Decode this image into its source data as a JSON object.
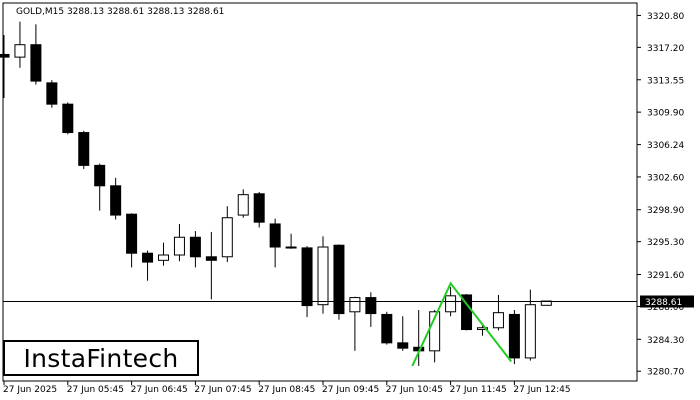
{
  "chart_header": "GOLD,M15  3288.13 3288.61 3288.13 3288.61",
  "logo_text": "InstaFintech",
  "colors": {
    "background": "#ffffff",
    "bull_body": "#ffffff",
    "bear_body": "#000000",
    "wick": "#000000",
    "pattern_line": "#22cc22",
    "price_line": "#000000"
  },
  "chart_data": {
    "type": "candlestick",
    "symbol": "GOLD",
    "timeframe": "M15",
    "ylim": [
      3279.6,
      3322.2
    ],
    "current_price": 3288.61,
    "current_price_label": "3288.61",
    "y_ticks": [
      "3320.80",
      "3317.20",
      "3313.55",
      "3309.90",
      "3306.24",
      "3302.60",
      "3298.90",
      "3295.30",
      "3291.60",
      "3288.00",
      "3284.30",
      "3280.70"
    ],
    "x_ticks": [
      {
        "label": "27 Jun 2025",
        "bar": 0
      },
      {
        "label": "27 Jun 05:45",
        "bar": 4
      },
      {
        "label": "27 Jun 06:45",
        "bar": 8
      },
      {
        "label": "27 Jun 07:45",
        "bar": 12
      },
      {
        "label": "27 Jun 08:45",
        "bar": 16
      },
      {
        "label": "27 Jun 09:45",
        "bar": 20
      },
      {
        "label": "27 Jun 10:45",
        "bar": 24
      },
      {
        "label": "27 Jun 11:45",
        "bar": 28
      },
      {
        "label": "27 Jun 12:45",
        "bar": 32
      }
    ],
    "candles": [
      {
        "o": 3316.4,
        "h": 3318.6,
        "l": 3311.5,
        "c": 3316.1
      },
      {
        "o": 3316.1,
        "h": 3320.1,
        "l": 3314.9,
        "c": 3317.5
      },
      {
        "o": 3317.5,
        "h": 3319.8,
        "l": 3313.0,
        "c": 3313.4
      },
      {
        "o": 3313.2,
        "h": 3313.5,
        "l": 3310.4,
        "c": 3310.8
      },
      {
        "o": 3310.8,
        "h": 3311.0,
        "l": 3307.4,
        "c": 3307.6
      },
      {
        "o": 3307.6,
        "h": 3307.8,
        "l": 3303.5,
        "c": 3303.9
      },
      {
        "o": 3303.9,
        "h": 3304.1,
        "l": 3298.8,
        "c": 3301.6
      },
      {
        "o": 3301.6,
        "h": 3302.5,
        "l": 3297.8,
        "c": 3298.3
      },
      {
        "o": 3298.4,
        "h": 3298.5,
        "l": 3292.4,
        "c": 3294.0
      },
      {
        "o": 3294.0,
        "h": 3294.3,
        "l": 3290.9,
        "c": 3293.0
      },
      {
        "o": 3293.2,
        "h": 3295.2,
        "l": 3292.6,
        "c": 3293.8
      },
      {
        "o": 3293.8,
        "h": 3297.3,
        "l": 3293.1,
        "c": 3295.8
      },
      {
        "o": 3295.8,
        "h": 3296.5,
        "l": 3292.4,
        "c": 3293.6
      },
      {
        "o": 3293.6,
        "h": 3296.4,
        "l": 3288.8,
        "c": 3293.2
      },
      {
        "o": 3293.6,
        "h": 3299.3,
        "l": 3293.0,
        "c": 3298.0
      },
      {
        "o": 3298.3,
        "h": 3301.2,
        "l": 3298.0,
        "c": 3300.6
      },
      {
        "o": 3300.7,
        "h": 3300.9,
        "l": 3296.9,
        "c": 3297.5
      },
      {
        "o": 3297.3,
        "h": 3297.9,
        "l": 3292.4,
        "c": 3294.7
      },
      {
        "o": 3294.7,
        "h": 3296.2,
        "l": 3294.5,
        "c": 3294.7
      },
      {
        "o": 3294.6,
        "h": 3294.8,
        "l": 3286.8,
        "c": 3288.1
      },
      {
        "o": 3288.2,
        "h": 3295.9,
        "l": 3287.2,
        "c": 3294.7
      },
      {
        "o": 3294.9,
        "h": 3295.0,
        "l": 3286.5,
        "c": 3287.2
      },
      {
        "o": 3287.4,
        "h": 3289.1,
        "l": 3283.0,
        "c": 3289.0
      },
      {
        "o": 3289.0,
        "h": 3289.6,
        "l": 3285.7,
        "c": 3287.2
      },
      {
        "o": 3287.1,
        "h": 3287.4,
        "l": 3283.7,
        "c": 3283.9
      },
      {
        "o": 3283.9,
        "h": 3286.9,
        "l": 3283.0,
        "c": 3283.3
      },
      {
        "o": 3283.4,
        "h": 3287.6,
        "l": 3281.3,
        "c": 3283.0
      },
      {
        "o": 3283.0,
        "h": 3287.6,
        "l": 3281.7,
        "c": 3287.4
      },
      {
        "o": 3287.4,
        "h": 3290.2,
        "l": 3286.9,
        "c": 3289.2
      },
      {
        "o": 3289.3,
        "h": 3289.4,
        "l": 3285.3,
        "c": 3285.4
      },
      {
        "o": 3285.4,
        "h": 3286.0,
        "l": 3284.7,
        "c": 3285.6
      },
      {
        "o": 3285.6,
        "h": 3289.3,
        "l": 3285.3,
        "c": 3287.3
      },
      {
        "o": 3287.1,
        "h": 3287.6,
        "l": 3281.5,
        "c": 3282.2
      },
      {
        "o": 3282.2,
        "h": 3289.9,
        "l": 3281.9,
        "c": 3288.2
      },
      {
        "o": 3288.13,
        "h": 3288.61,
        "l": 3288.13,
        "c": 3288.61
      }
    ],
    "pattern": {
      "name": "double bottom",
      "points": [
        {
          "bar": 25.6,
          "price": 3281.3
        },
        {
          "bar": 28.0,
          "price": 3290.6
        },
        {
          "bar": 31.8,
          "price": 3281.8
        }
      ]
    }
  }
}
